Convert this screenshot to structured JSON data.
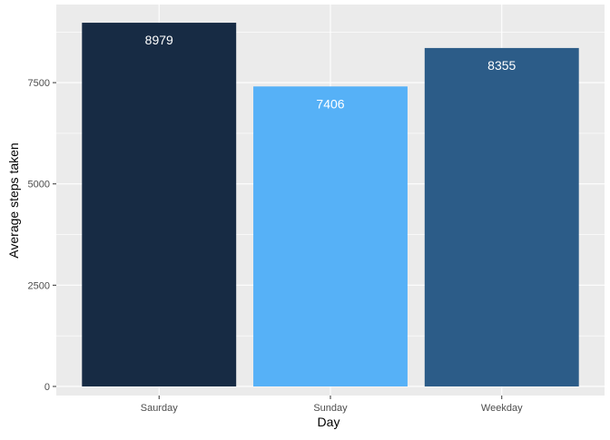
{
  "chart_data": {
    "type": "bar",
    "categories": [
      "Saurday",
      "Sunday",
      "Weekday"
    ],
    "values": [
      8979,
      7406,
      8355
    ],
    "data_labels": [
      "8979",
      "7406",
      "8355"
    ],
    "bar_colors": [
      "#172b44",
      "#56b1f7",
      "#2c5c88"
    ],
    "label_color": "#ffffff",
    "xlabel": "Day",
    "ylabel": "Average steps taken",
    "title": "",
    "ylim": [
      -224.5,
      9428
    ],
    "y_ticks": [
      0,
      2500,
      5000,
      7500
    ],
    "y_tick_labels": [
      "0",
      "2500",
      "5000",
      "7500"
    ],
    "y_minor_ticks": [
      1250,
      3750,
      6250,
      8750
    ],
    "grid": true,
    "panel_background": "#ebebeb",
    "grid_color": "#ffffff",
    "legend": "none"
  }
}
